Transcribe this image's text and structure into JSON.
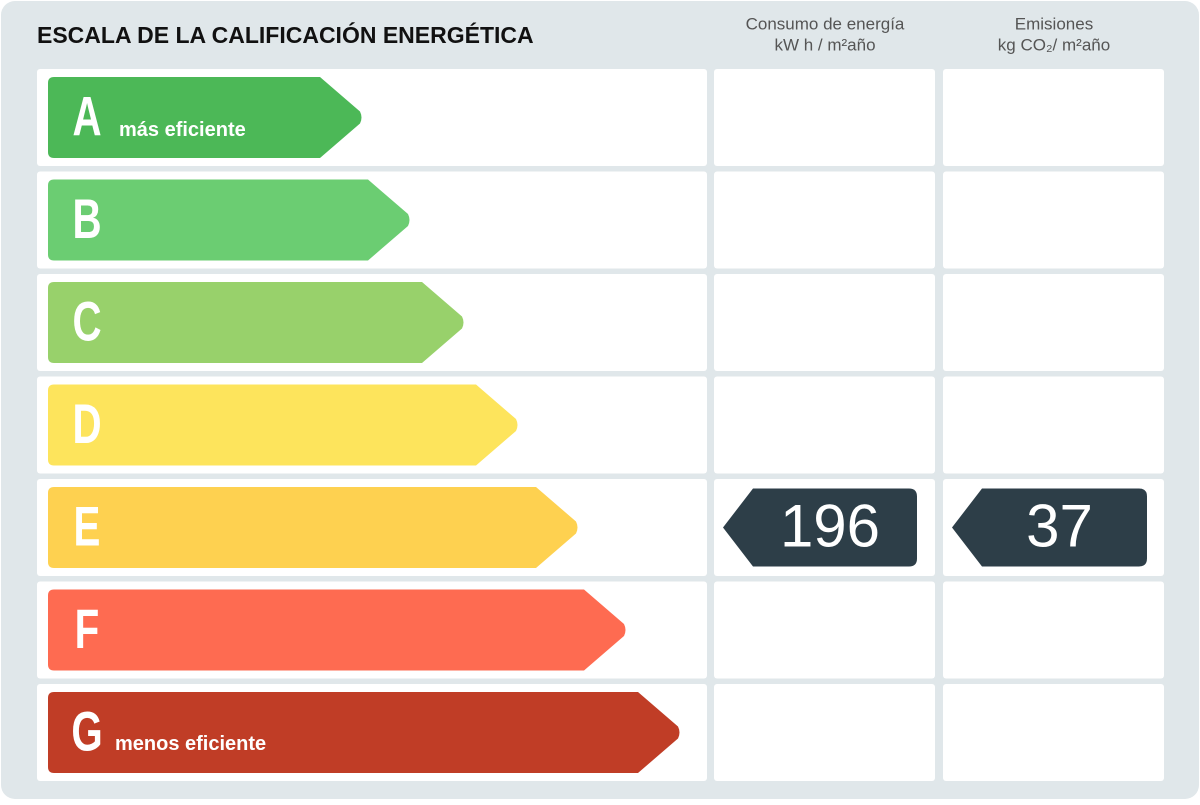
{
  "title": "ESCALA DE LA CALIFICACIÓN ENERGÉTICA",
  "columns": [
    {
      "title": "Consumo de energía",
      "unit": "kW h / m²año"
    },
    {
      "title": "Emisiones",
      "unit": "kg CO₂/ m²año"
    }
  ],
  "rows": [
    {
      "letter": "A",
      "note": "más eficiente",
      "color": "#4cb857"
    },
    {
      "letter": "B",
      "color": "#6bcd72"
    },
    {
      "letter": "C",
      "color": "#98d16b"
    },
    {
      "letter": "D",
      "color": "#fde45c"
    },
    {
      "letter": "E",
      "color": "#fed150",
      "consumption": 196,
      "emissions": 37
    },
    {
      "letter": "F",
      "color": "#fe6b51"
    },
    {
      "letter": "G",
      "note": "menos eficiente",
      "color": "#c03d26"
    }
  ],
  "badge_color": "#2d3e48"
}
